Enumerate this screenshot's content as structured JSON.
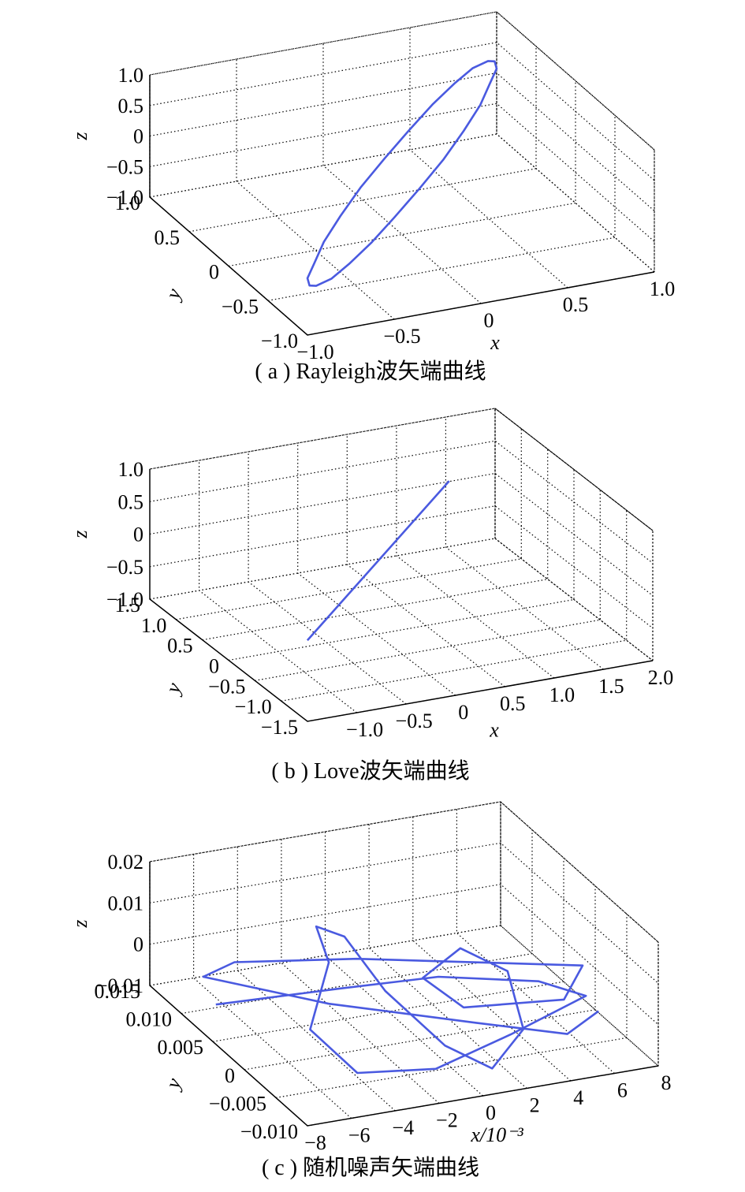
{
  "chart_data": [
    {
      "type": "line3d",
      "caption": "( a ) Rayleigh波矢端曲线",
      "xlabel": "x",
      "ylabel": "y",
      "zlabel": "z",
      "color": "#4a5ae0",
      "xlim": [
        -1,
        1
      ],
      "ylim": [
        -1,
        1
      ],
      "zlim": [
        -1,
        1
      ],
      "xticks": [
        {
          "value": -1,
          "label": "−1.0"
        },
        {
          "value": -0.5,
          "label": "−0.5"
        },
        0,
        0.5,
        {
          "value": 1,
          "label": "1.0"
        }
      ],
      "yticks": [
        {
          "value": -1,
          "label": "−1.0"
        },
        {
          "value": -0.5,
          "label": "−0.5"
        },
        0,
        0.5,
        {
          "value": 1,
          "label": "1.0"
        }
      ],
      "zticks": [
        {
          "value": -1,
          "label": "−1.0"
        },
        {
          "value": -0.5,
          "label": "−0.5"
        },
        0,
        0.5,
        {
          "value": 1,
          "label": "1.0"
        }
      ],
      "x": [
        0,
        0.19,
        0.36,
        0.51,
        0.62,
        0.7,
        0.72,
        0.7,
        0.62,
        0.51,
        0.36,
        0.19,
        0,
        -0.19,
        -0.36,
        -0.51,
        -0.62,
        -0.7,
        -0.72,
        -0.7,
        -0.62,
        -0.51,
        -0.36,
        -0.19,
        0
      ],
      "y": [
        0.22,
        0.32,
        0.4,
        0.45,
        0.47,
        0.45,
        0.41,
        0.34,
        0.25,
        0.13,
        0.01,
        -0.11,
        -0.22,
        -0.32,
        -0.4,
        -0.45,
        -0.47,
        -0.45,
        -0.41,
        -0.34,
        -0.25,
        -0.13,
        -0.01,
        0.11,
        0.22
      ],
      "z": [
        0,
        0.26,
        0.5,
        0.71,
        0.87,
        0.97,
        1,
        0.97,
        0.87,
        0.71,
        0.5,
        0.26,
        0,
        -0.26,
        -0.5,
        -0.71,
        -0.87,
        -0.97,
        -1,
        -0.97,
        -0.87,
        -0.71,
        -0.5,
        -0.26,
        0
      ]
    },
    {
      "type": "line3d",
      "caption": "( b ) Love波矢端曲线",
      "xlabel": "x",
      "ylabel": "y",
      "zlabel": "z",
      "color": "#4a5ae0",
      "xlim": [
        -1.5,
        2
      ],
      "ylim": [
        -1.5,
        1.5
      ],
      "zlim": [
        -1,
        1
      ],
      "xticks": [
        {
          "value": -1,
          "label": "−1.0"
        },
        {
          "value": -0.5,
          "label": "−0.5"
        },
        0,
        0.5,
        {
          "value": 1,
          "label": "1.0"
        },
        1.5,
        {
          "value": 2,
          "label": "2.0"
        }
      ],
      "yticks": [
        {
          "value": -1.5,
          "label": "−1.5"
        },
        {
          "value": -1,
          "label": "−1.0"
        },
        {
          "value": -0.5,
          "label": "−0.5"
        },
        0,
        0.5,
        {
          "value": 1,
          "label": "1.0"
        },
        1.5
      ],
      "zticks": [
        {
          "value": -1,
          "label": "−1.0"
        },
        {
          "value": -0.5,
          "label": "−0.5"
        },
        0,
        0.5,
        {
          "value": 1,
          "label": "1.0"
        }
      ],
      "x": [
        -1.33,
        1.54
      ],
      "y": [
        -1.18,
        1.51
      ],
      "z": [
        0,
        0
      ]
    },
    {
      "type": "line3d",
      "caption": "( c ) 随机噪声矢端曲线",
      "xlabel": "x/10⁻³",
      "ylabel": "y",
      "zlabel": "z",
      "color": "#4a5ae0",
      "xlim": [
        -8,
        8
      ],
      "ylim": [
        -0.01,
        0.015
      ],
      "zlim": [
        -0.01,
        0.02
      ],
      "xticks": [
        {
          "value": -8,
          "label": "−8"
        },
        {
          "value": -6,
          "label": "−6"
        },
        {
          "value": -4,
          "label": "−4"
        },
        {
          "value": -2,
          "label": "−2"
        },
        0,
        2,
        4,
        6,
        8
      ],
      "yticks": [
        {
          "value": -0.01,
          "label": "−0.010"
        },
        {
          "value": -0.005,
          "label": "−0.005"
        },
        0,
        0.005,
        {
          "value": 0.01,
          "label": "0.010"
        },
        0.015
      ],
      "zticks": [
        {
          "value": -0.01,
          "label": "−0.01"
        },
        0,
        0.01,
        0.02
      ],
      "x": [
        -7,
        -2,
        2,
        6,
        7,
        3,
        -1,
        -4,
        -5,
        -3,
        -3,
        -2,
        -1,
        0,
        1,
        3,
        4,
        3,
        1,
        2,
        6,
        8,
        4,
        0,
        -5,
        -7,
        -3,
        2,
        5,
        7
      ],
      "y": [
        0.008,
        0.006,
        0.004,
        0.002,
        -0.002,
        -0.004,
        -0.006,
        -0.004,
        0,
        0.004,
        0.006,
        0.005,
        0.002,
        -0.004,
        -0.008,
        -0.006,
        0,
        0.004,
        0.003,
        0,
        -0.002,
        0.002,
        0.006,
        0.01,
        0.012,
        0.01,
        0.004,
        -0.002,
        -0.006,
        -0.004
      ],
      "z": [
        -0.006,
        -0.004,
        -0.002,
        -0.004,
        -0.003,
        -0.006,
        -0.008,
        -0.009,
        -0.003,
        0.006,
        0.012,
        0.01,
        0,
        -0.006,
        -0.007,
        -0.002,
        0.003,
        0.004,
        0,
        -0.004,
        -0.003,
        -0.002,
        -0.003,
        -0.004,
        -0.003,
        -0.002,
        -0.004,
        -0.005,
        -0.005,
        -0.004
      ]
    }
  ]
}
